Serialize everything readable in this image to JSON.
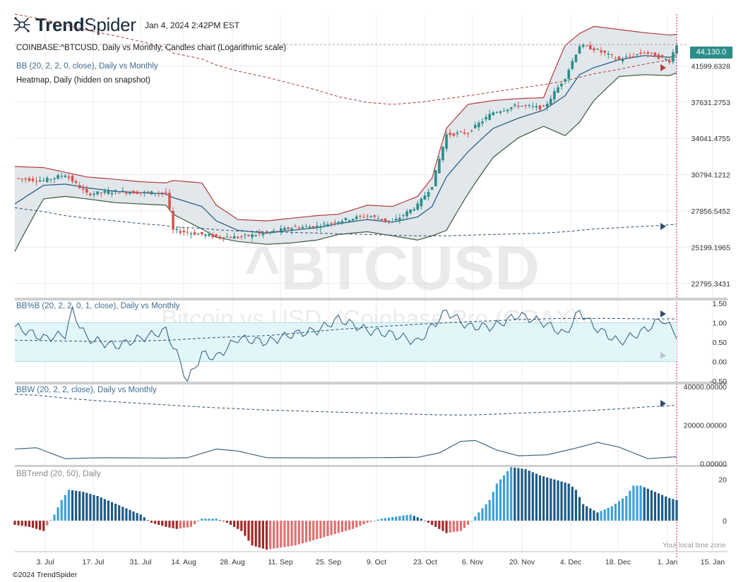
{
  "header": {
    "brand_bold": "Trend",
    "brand_light": "Spider",
    "timestamp": "Jan 4, 2024 2:42PM EST"
  },
  "main_panel": {
    "title": "COINBASE:^BTCUSD, Daily vs Monthly, Candles chart (Logarithmic scale)",
    "bb_label": "BB (20, 2, 2, 0, close), Daily vs Monthly",
    "heatmap_label": "Heatmap, Daily (hidden on snapshot)",
    "watermark_symbol": "^BTCUSD",
    "watermark_name": "Bitcoin vs USD, (Coinbase Pro (GDAX))",
    "current_price": "44,130.0",
    "price_ticks": [
      "41599.6328",
      "37631.2753",
      "34041.4755",
      "30794.1212",
      "27856.5452",
      "25199.1965",
      "22795.3431"
    ]
  },
  "pctb_panel": {
    "label": "BB%B (20, 2, 2, 0, 1, close), Daily vs Monthly",
    "ticks": [
      "1.50",
      "1.00",
      "0.50",
      "0.00",
      "-0.50"
    ]
  },
  "bbw_panel": {
    "label": "BBW (20, 2, 2, close), Daily vs Monthly",
    "ticks": [
      "40000.00000",
      "20000.00000",
      "0.00000"
    ]
  },
  "bbtrend_panel": {
    "label": "BBTrend (20, 50), Daily",
    "ticks": [
      "20",
      "0"
    ]
  },
  "x_axis": {
    "labels": [
      "3. Jul",
      "17. Jul",
      "31. Jul",
      "14. Aug",
      "28. Aug",
      "11. Sep",
      "25. Sep",
      "9. Oct",
      "23. Oct",
      "6. Nov",
      "20. Nov",
      "4. Dec",
      "18. Dec",
      "1. Jan",
      "15. Jan"
    ],
    "timezone_note": "Your local time zone"
  },
  "footer": {
    "copyright": "©2024 TrendSpider"
  },
  "colors": {
    "up": "#2a8e89",
    "down": "#d9534f",
    "bb_upper": "#b23b3b",
    "bb_lower": "#3b5a3b",
    "bb_mid": "#2d5f86",
    "band_fill": "#dde3e8",
    "pctb_band": "#e2f6fa",
    "trend_pos_light": "#3fa0d8",
    "trend_pos_dark": "#1e5a86",
    "trend_neg_light": "#e07070",
    "trend_neg_dark": "#a42828"
  },
  "chart_data": [
    {
      "type": "line",
      "name": "COINBASE:^BTCUSD price",
      "title": "COINBASE:^BTCUSD, Daily vs Monthly, Candles chart (Logarithmic scale)",
      "y_scale": "log",
      "ylim": [
        22000,
        48000
      ],
      "x_ticks": [
        "3. Jul",
        "17. Jul",
        "31. Jul",
        "14. Aug",
        "28. Aug",
        "11. Sep",
        "25. Sep",
        "9. Oct",
        "23. Oct",
        "6. Nov",
        "20. Nov",
        "4. Dec",
        "18. Dec",
        "1. Jan",
        "15. Jan"
      ],
      "x": [
        0,
        8,
        14,
        20,
        28,
        35,
        42,
        44,
        52,
        56,
        62,
        70,
        77,
        84,
        90,
        98,
        105,
        112,
        116,
        120,
        126,
        133,
        140,
        147,
        153,
        157,
        161,
        168,
        175,
        182,
        184
      ],
      "close": [
        30500,
        30300,
        30800,
        29200,
        29400,
        29300,
        29300,
        26400,
        26100,
        25950,
        25900,
        26200,
        26600,
        26700,
        27100,
        27500,
        27000,
        28300,
        29900,
        34400,
        34600,
        36600,
        37300,
        37000,
        40300,
        44000,
        43600,
        42300,
        43200,
        42200,
        44130
      ],
      "series": [
        {
          "name": "BB Upper",
          "values": [
            31500,
            31400,
            31000,
            30600,
            30400,
            30200,
            30100,
            30300,
            30100,
            28300,
            27200,
            27100,
            27300,
            27500,
            27600,
            28300,
            28200,
            29000,
            30500,
            35000,
            37400,
            37800,
            38000,
            38100,
            44000,
            45500,
            46400,
            46000,
            45600,
            45300,
            45400
          ]
        },
        {
          "name": "BB Mid",
          "values": [
            28400,
            29900,
            30000,
            29700,
            29400,
            29300,
            29200,
            28900,
            28200,
            27100,
            26400,
            26200,
            26400,
            26600,
            26900,
            27200,
            27000,
            27400,
            28200,
            30600,
            32800,
            35000,
            36000,
            36800,
            38300,
            40600,
            41400,
            42300,
            42800,
            42600,
            42800
          ]
        },
        {
          "name": "BB Lower",
          "values": [
            24900,
            28800,
            29000,
            28800,
            28500,
            28400,
            28300,
            27600,
            26500,
            25900,
            25600,
            25400,
            25500,
            25700,
            26100,
            26300,
            26000,
            25700,
            26000,
            26400,
            29200,
            32300,
            34100,
            35200,
            34300,
            35600,
            37800,
            40400,
            40600,
            40500,
            40800
          ]
        },
        {
          "name": "BB Monthly Mid",
          "values": [
            28100,
            27800,
            27500,
            27300,
            27100,
            26900,
            26750,
            26650,
            26550,
            26450,
            26350,
            26300,
            26250,
            26200,
            26150,
            26100,
            26050,
            26000,
            26000,
            26000,
            26050,
            26100,
            26150,
            26200,
            26300,
            26400,
            26500,
            26600,
            26700,
            26800,
            26850
          ]
        },
        {
          "name": "BB Monthly Upper",
          "values": [
            48000,
            47300,
            46600,
            45900,
            45200,
            44500,
            43800,
            43100,
            42400,
            41700,
            41000,
            40300,
            39600,
            38900,
            38200,
            37600,
            37400,
            37600,
            37800,
            38000,
            38300,
            38700,
            39100,
            39500,
            39900,
            40300,
            40700,
            41200,
            41800,
            42300,
            42600
          ]
        }
      ]
    },
    {
      "type": "line",
      "name": "BB%B",
      "title": "BB%B (20, 2, 2, 0, 1, close), Daily vs Monthly",
      "ylim": [
        -0.5,
        1.5
      ],
      "y_ticks": [
        1.5,
        1.0,
        0.5,
        0.0,
        -0.5
      ],
      "x": [
        0,
        8,
        14,
        16,
        20,
        28,
        35,
        42,
        45,
        48,
        52,
        56,
        62,
        70,
        77,
        84,
        90,
        98,
        105,
        112,
        120,
        126,
        133,
        140,
        147,
        153,
        157,
        161,
        168,
        175,
        180,
        184
      ],
      "values": [
        0.9,
        0.6,
        0.7,
        1.3,
        0.6,
        0.4,
        0.6,
        0.8,
        0.2,
        -0.5,
        0.2,
        0.1,
        0.6,
        0.5,
        0.7,
        0.8,
        1.1,
        0.8,
        0.7,
        0.5,
        1.3,
        0.9,
        0.9,
        1.2,
        1.0,
        0.7,
        1.3,
        0.9,
        0.5,
        0.8,
        1.1,
        0.7
      ],
      "series": [
        {
          "name": "Monthly BB%B",
          "values": [
            0.55,
            0.54,
            0.53,
            0.53,
            0.52,
            0.52,
            0.53,
            0.55,
            0.56,
            0.58,
            0.6,
            0.62,
            0.64,
            0.67,
            0.72,
            0.78,
            0.83,
            0.88,
            0.92,
            0.96,
            1.0,
            1.03,
            1.05,
            1.08,
            1.1,
            1.11,
            1.11,
            1.11,
            1.11,
            1.1,
            1.1,
            1.1
          ]
        }
      ]
    },
    {
      "type": "line",
      "name": "BBW",
      "title": "BBW (20, 2, 2, close), Daily vs Monthly",
      "ylim": [
        0,
        40000
      ],
      "y_ticks": [
        40000,
        20000,
        0
      ],
      "x": [
        0,
        6,
        14,
        24,
        42,
        48,
        56,
        62,
        70,
        84,
        98,
        112,
        118,
        124,
        128,
        134,
        140,
        148,
        156,
        162,
        168,
        176,
        184
      ],
      "values": [
        7500,
        8200,
        2500,
        3000,
        2800,
        3000,
        7500,
        6500,
        3000,
        2900,
        3000,
        3200,
        5500,
        11500,
        12000,
        7000,
        4000,
        4500,
        8000,
        11000,
        8500,
        2500,
        3500
      ],
      "series": [
        {
          "name": "Monthly BBW",
          "values": [
            36000,
            35500,
            34000,
            32500,
            30500,
            29800,
            29000,
            28500,
            27800,
            27000,
            26300,
            25600,
            25300,
            25200,
            25300,
            25700,
            26200,
            26700,
            27200,
            27800,
            28400,
            29500,
            30200
          ]
        }
      ]
    },
    {
      "type": "bar",
      "name": "BBTrend",
      "title": "BBTrend (20, 50), Daily",
      "ylim": [
        -15,
        25
      ],
      "y_ticks": [
        20,
        0
      ],
      "x": [
        0,
        4,
        8,
        11,
        13,
        15,
        19,
        23,
        27,
        31,
        35,
        38,
        42,
        45,
        49,
        52,
        56,
        59,
        63,
        66,
        70,
        74,
        78,
        82,
        86,
        90,
        94,
        98,
        102,
        106,
        110,
        113,
        116,
        120,
        124,
        126,
        128,
        132,
        134,
        138,
        142,
        146,
        150,
        154,
        156,
        158,
        162,
        166,
        170,
        172,
        174,
        178,
        182,
        184
      ],
      "values": [
        -2,
        -3,
        -5,
        3,
        10,
        15,
        14,
        12,
        9,
        6,
        3,
        -1,
        -3,
        -4,
        -3,
        1,
        1,
        -1,
        -5,
        -12,
        -14,
        -13,
        -12,
        -10,
        -8,
        -6,
        -4,
        -1,
        1,
        2,
        3,
        1,
        -2,
        -6,
        -5,
        -2,
        2,
        10,
        18,
        26,
        25,
        22,
        20,
        18,
        15,
        8,
        4,
        7,
        12,
        17,
        17,
        14,
        11,
        10
      ]
    }
  ]
}
